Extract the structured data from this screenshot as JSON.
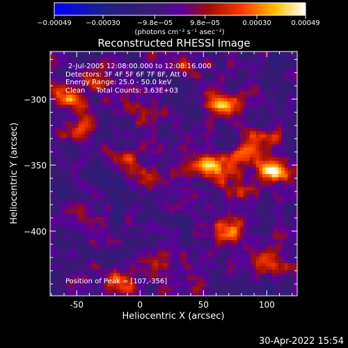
{
  "chart_data": {
    "type": "heatmap",
    "title": "Reconstructed RHESSI Image",
    "xlabel": "Heliocentric X (arcsec)",
    "ylabel": "Heliocentric Y (arcsec)",
    "xlim": [
      -71,
      124
    ],
    "ylim": [
      -449,
      -264
    ],
    "x_ticks": [
      -50,
      0,
      50,
      100
    ],
    "y_ticks": [
      -300,
      -350,
      -400
    ],
    "colorbar": {
      "label": "(photons cm⁻² s⁻¹ asec⁻²)",
      "range": [
        -0.00049,
        0.00049
      ],
      "ticks": [
        -0.00049,
        -0.0003,
        -9.8e-05,
        9.8e-05,
        0.0003,
        0.00049
      ],
      "tick_labels": [
        "−0.00049",
        "−0.00030",
        "−9.8e−05",
        "9.8e−05",
        "0.00030",
        "0.00049"
      ]
    },
    "annotations": [
      "2-Jul-2005 12:08:00.000 to 12:08:16.000",
      "Detectors: 3F 4F 5F 6F 7F 8F, Att 0",
      "Energy Range: 25.0 - 50.0 keV",
      "Clean     Total Counts: 3.63E+03",
      "Position of Peak = [107,-356]"
    ],
    "peak": [
      107,
      -356
    ],
    "hotspots": [
      {
        "x": -58,
        "y": -300,
        "v": 0.00034
      },
      {
        "x": -35,
        "y": -287,
        "v": 0.00028
      },
      {
        "x": -52,
        "y": -322,
        "v": 0.00022
      },
      {
        "x": -5,
        "y": -310,
        "v": 0.00024
      },
      {
        "x": -15,
        "y": -345,
        "v": 0.0002
      },
      {
        "x": 5,
        "y": -360,
        "v": 0.00018
      },
      {
        "x": 65,
        "y": -305,
        "v": 0.0004
      },
      {
        "x": 95,
        "y": -330,
        "v": 0.00022
      },
      {
        "x": 50,
        "y": -350,
        "v": 0.00045
      },
      {
        "x": 75,
        "y": -365,
        "v": 0.00025
      },
      {
        "x": 107,
        "y": -356,
        "v": 0.00049
      },
      {
        "x": 80,
        "y": -345,
        "v": 0.0003
      },
      {
        "x": 70,
        "y": -400,
        "v": 0.00032
      },
      {
        "x": 100,
        "y": -425,
        "v": 0.00026
      },
      {
        "x": -15,
        "y": -440,
        "v": 0.0003
      },
      {
        "x": 15,
        "y": -420,
        "v": 0.0002
      },
      {
        "x": 30,
        "y": -275,
        "v": 0.00022
      },
      {
        "x": -40,
        "y": -395,
        "v": 0.00014
      },
      {
        "x": 45,
        "y": -440,
        "v": 0.00016
      }
    ]
  },
  "footer": {
    "date": "30-Apr-2022 15:54"
  }
}
